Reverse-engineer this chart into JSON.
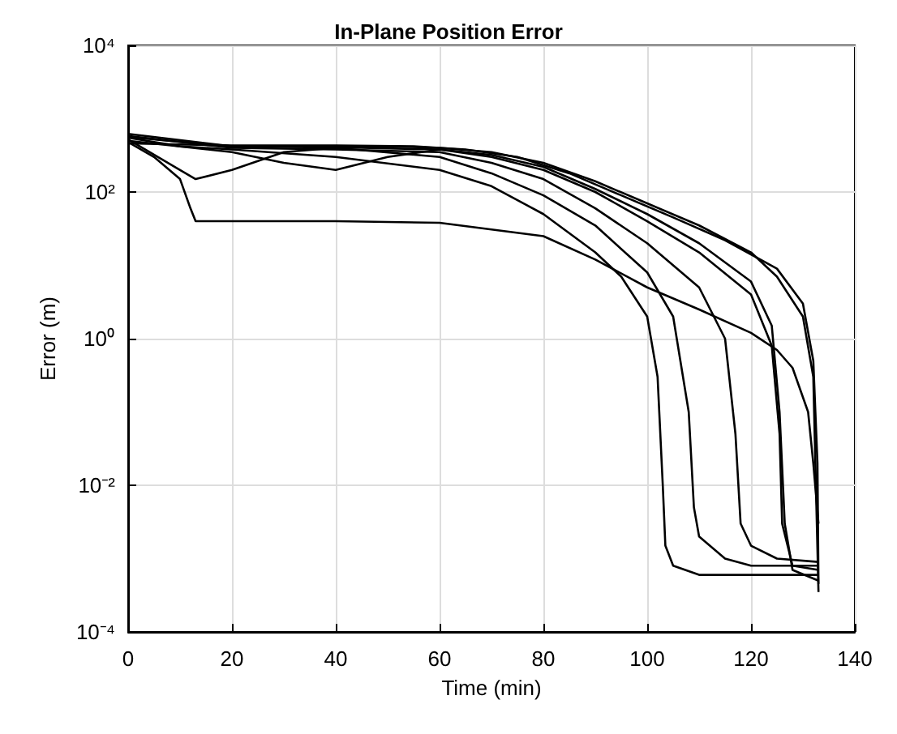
{
  "chart_data": {
    "type": "line",
    "title": "In-Plane Position Error",
    "xlabel": "Time (min)",
    "ylabel": "Error (m)",
    "log": "y",
    "grid": true,
    "line_style": "solid",
    "marker": "none",
    "xlim": [
      0,
      140
    ],
    "xticks": [
      0,
      20,
      40,
      60,
      80,
      100,
      120,
      140
    ],
    "ylim": [
      0.0001,
      10000
    ],
    "yticks": [
      {
        "value": 0.0001,
        "label": "10⁻⁴"
      },
      {
        "value": 0.01,
        "label": "10⁻²"
      },
      {
        "value": 1,
        "label": "10⁰"
      },
      {
        "value": 100,
        "label": "10²"
      },
      {
        "value": 10000,
        "label": "10⁴"
      }
    ],
    "series": [
      {
        "color": "#000000",
        "x": [
          0,
          5,
          10,
          12,
          13,
          40,
          60,
          80,
          90,
          100,
          110,
          120,
          125,
          128,
          131,
          132,
          133
        ],
        "values": [
          480,
          300,
          150,
          60,
          40,
          40,
          38,
          25,
          12,
          5,
          2.5,
          1.2,
          0.7,
          0.4,
          0.1,
          0.02,
          0.003
        ]
      },
      {
        "color": "#000000",
        "x": [
          0,
          10,
          20,
          40,
          60,
          70,
          80,
          90,
          95,
          100,
          102,
          103,
          103.5,
          105,
          110,
          133
        ],
        "values": [
          550,
          420,
          380,
          300,
          200,
          120,
          50,
          15,
          7,
          2,
          0.3,
          0.01,
          0.0015,
          0.0008,
          0.0006,
          0.0006
        ]
      },
      {
        "color": "#000000",
        "x": [
          0,
          10,
          13,
          20,
          30,
          40,
          60,
          70,
          80,
          90,
          100,
          105,
          108,
          109,
          110,
          115,
          120,
          133
        ],
        "values": [
          520,
          200,
          150,
          200,
          350,
          400,
          300,
          180,
          90,
          35,
          8,
          2,
          0.1,
          0.005,
          0.002,
          0.001,
          0.0008,
          0.0008
        ]
      },
      {
        "color": "#000000",
        "x": [
          0,
          20,
          40,
          60,
          70,
          80,
          90,
          100,
          110,
          115,
          117,
          118,
          120,
          125,
          133
        ],
        "values": [
          580,
          400,
          380,
          350,
          250,
          150,
          60,
          20,
          5,
          1,
          0.05,
          0.003,
          0.0015,
          0.001,
          0.0009
        ]
      },
      {
        "color": "#000000",
        "x": [
          0,
          20,
          30,
          40,
          50,
          60,
          70,
          80,
          90,
          100,
          110,
          120,
          124,
          125.5,
          126,
          128,
          133
        ],
        "values": [
          500,
          350,
          250,
          200,
          300,
          380,
          300,
          200,
          100,
          40,
          15,
          4,
          0.8,
          0.05,
          0.003,
          0.0008,
          0.0007
        ]
      },
      {
        "color": "#000000",
        "x": [
          0,
          20,
          45,
          60,
          70,
          80,
          90,
          100,
          110,
          120,
          124,
          125.5,
          126.5,
          128,
          133
        ],
        "values": [
          620,
          420,
          400,
          380,
          320,
          220,
          110,
          50,
          20,
          6,
          1.5,
          0.1,
          0.003,
          0.0007,
          0.0005
        ]
      },
      {
        "color": "#000000",
        "x": [
          0,
          20,
          50,
          60,
          70,
          80,
          90,
          100,
          110,
          120,
          125,
          130,
          132,
          132.5,
          133
        ],
        "values": [
          560,
          420,
          420,
          400,
          350,
          250,
          140,
          70,
          35,
          15,
          7,
          2,
          0.3,
          0.01,
          0.00035
        ]
      },
      {
        "color": "#000000",
        "x": [
          0,
          20,
          40,
          55,
          65,
          75,
          85,
          95,
          105,
          115,
          125,
          130,
          132,
          132.8,
          133
        ],
        "values": [
          460,
          430,
          430,
          420,
          380,
          300,
          180,
          90,
          45,
          22,
          9,
          3,
          0.5,
          0.02,
          0.00045
        ]
      }
    ]
  }
}
